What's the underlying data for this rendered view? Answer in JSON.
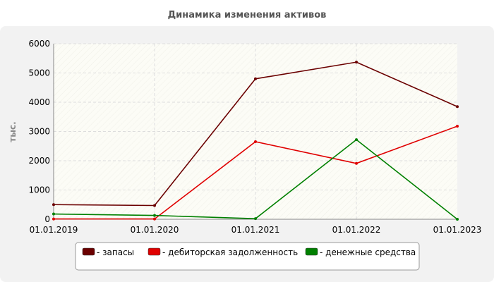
{
  "chart_data": {
    "type": "line",
    "title": "Динамика изменения активов",
    "ylabel": "тыс.",
    "xlabel": "",
    "x": [
      "01.01.2019",
      "01.01.2020",
      "01.01.2021",
      "01.01.2022",
      "01.01.2023"
    ],
    "ylim": [
      0,
      6000
    ],
    "yticks": [
      0,
      1000,
      2000,
      3000,
      4000,
      5000,
      6000
    ],
    "grid": true,
    "legend_position": "bottom",
    "series": [
      {
        "name": "- запасы",
        "color": "#6b0000",
        "values": [
          500,
          470,
          4800,
          5370,
          3850
        ]
      },
      {
        "name": "- дебиторская задолженность",
        "color": "#e00000",
        "values": [
          10,
          10,
          2650,
          1910,
          3180
        ]
      },
      {
        "name": "- денежные средства",
        "color": "#008000",
        "values": [
          180,
          130,
          20,
          2720,
          0
        ]
      }
    ]
  }
}
